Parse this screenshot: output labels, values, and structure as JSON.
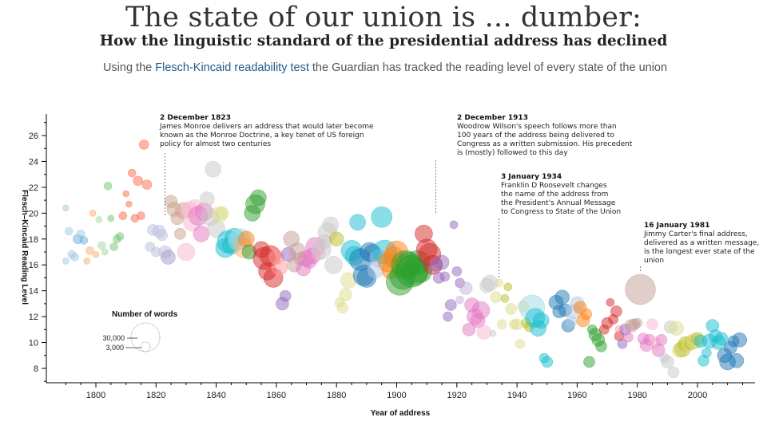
{
  "header": {
    "title": "The state of our union is ... dumber:",
    "subtitle": "How the linguistic standard of the presidential address has declined",
    "intro_before": "Using the ",
    "intro_link": "Flesch-Kincaid readability test",
    "intro_after": " the Guardian has tracked the reading level of every state of the union"
  },
  "chart_data": {
    "type": "scatter",
    "title": "",
    "xlabel": "Year of address",
    "ylabel": "Flesch–Kincaid Reading Level",
    "xlim": [
      1786,
      2018
    ],
    "ylim": [
      7,
      27.5
    ],
    "xticks": [
      1800,
      1820,
      1840,
      1860,
      1880,
      1900,
      1920,
      1940,
      1960,
      1980,
      2000
    ],
    "yticks": [
      8,
      10,
      12,
      14,
      16,
      18,
      20,
      22,
      24,
      26
    ],
    "grid": false,
    "bubble_size_meaning": "Number of words",
    "legend": {
      "title": "Number of words",
      "entries": [
        "30,000",
        "3,000"
      ],
      "entry_values": [
        30000,
        3000
      ]
    },
    "annotations": [
      {
        "year": 1823,
        "date": "2 December 1823",
        "lines": [
          "James Monroe delivers an address that would later become",
          "known as the Monroe Doctrine, a key tenet of US foreign",
          "policy for almost two centuries"
        ]
      },
      {
        "year": 1913,
        "date": "2 December 1913",
        "lines": [
          "Woodrow Wilson's speech follows more than",
          "100 years of the address being delivered to",
          "Congress as a written submission. His precedent",
          "is (mostly) followed to this day"
        ]
      },
      {
        "year": 1934,
        "date": "3 January 1934",
        "lines": [
          "Franklin D Roosevelt changes",
          "the name of the address from",
          "the President's Annual Message",
          "to Congress to State of the Union"
        ]
      },
      {
        "year": 1981,
        "date": "16 January 1981",
        "lines": [
          "Jimmy Carter's final address,",
          "delivered as a written message,",
          "is the longest ever state of the",
          "union"
        ]
      }
    ],
    "points": [
      [
        1790,
        20.4,
        "#9ecae1",
        4
      ],
      [
        1790,
        16.3,
        "#9ecae1",
        4
      ],
      [
        1791,
        18.6,
        "#9ecae1",
        5
      ],
      [
        1792,
        16.8,
        "#9ecae1",
        5
      ],
      [
        1793,
        16.6,
        "#9ecae1",
        5
      ],
      [
        1794,
        18.0,
        "#6baed6",
        6
      ],
      [
        1795,
        18.4,
        "#9ecae1",
        5
      ],
      [
        1796,
        17.9,
        "#6baed6",
        5
      ],
      [
        1797,
        16.3,
        "#fdae6b",
        4
      ],
      [
        1798,
        17.1,
        "#fdae6b",
        5
      ],
      [
        1799,
        20.0,
        "#fdae6b",
        4
      ],
      [
        1800,
        16.8,
        "#fdae6b",
        4
      ],
      [
        1801,
        19.5,
        "#a1d99b",
        4
      ],
      [
        1802,
        17.5,
        "#a1d99b",
        5
      ],
      [
        1803,
        17.0,
        "#a1d99b",
        4
      ],
      [
        1804,
        22.1,
        "#74c476",
        5
      ],
      [
        1805,
        19.6,
        "#74c476",
        4
      ],
      [
        1806,
        17.4,
        "#74c476",
        5
      ],
      [
        1807,
        18.0,
        "#74c476",
        5
      ],
      [
        1808,
        18.2,
        "#74c476",
        5
      ],
      [
        1809,
        19.8,
        "#fb6a4a",
        5
      ],
      [
        1810,
        21.5,
        "#fb6a4a",
        4
      ],
      [
        1811,
        20.7,
        "#fb6a4a",
        4
      ],
      [
        1812,
        23.1,
        "#fb6a4a",
        5
      ],
      [
        1813,
        19.6,
        "#fb6a4a",
        5
      ],
      [
        1814,
        22.5,
        "#fb6a4a",
        6
      ],
      [
        1815,
        19.8,
        "#fb6a4a",
        5
      ],
      [
        1816,
        25.3,
        "#fb6a4a",
        6
      ],
      [
        1817,
        22.2,
        "#fb6a4a",
        6
      ],
      [
        1818,
        17.4,
        "#bcbddc",
        6
      ],
      [
        1819,
        18.7,
        "#bcbddc",
        7
      ],
      [
        1820,
        17.0,
        "#bcbddc",
        6
      ],
      [
        1821,
        18.6,
        "#bcbddc",
        8
      ],
      [
        1822,
        18.3,
        "#bcbddc",
        7
      ],
      [
        1823,
        17.0,
        "#bcbddc",
        8
      ],
      [
        1824,
        16.6,
        "#9e9ac8",
        9
      ],
      [
        1825,
        20.9,
        "#c7a08a",
        8
      ],
      [
        1826,
        20.3,
        "#c7a08a",
        9
      ],
      [
        1827,
        19.6,
        "#c7a08a",
        8
      ],
      [
        1828,
        18.4,
        "#c7a08a",
        7
      ],
      [
        1829,
        20.2,
        "#d6a08a",
        10
      ],
      [
        1830,
        17.0,
        "#f7b6d2",
        11
      ],
      [
        1831,
        20.3,
        "#f7b6d2",
        10
      ],
      [
        1832,
        19.3,
        "#f7b6d2",
        11
      ],
      [
        1833,
        20.5,
        "#f7b6d2",
        9
      ],
      [
        1834,
        19.8,
        "#e377c2",
        12
      ],
      [
        1835,
        18.4,
        "#e377c2",
        10
      ],
      [
        1836,
        20.1,
        "#e377c2",
        11
      ],
      [
        1837,
        21.1,
        "#c7c7c7",
        9
      ],
      [
        1838,
        19.7,
        "#c7c7c7",
        11
      ],
      [
        1839,
        23.4,
        "#c7c7c7",
        10
      ],
      [
        1840,
        18.8,
        "#c7c7c7",
        11
      ],
      [
        1841,
        19.9,
        "#dbdb8d",
        10
      ],
      [
        1842,
        20.0,
        "#dbdb8d",
        8
      ],
      [
        1843,
        17.3,
        "#17becf",
        12
      ],
      [
        1844,
        17.8,
        "#17becf",
        14
      ],
      [
        1845,
        17.5,
        "#17becf",
        11
      ],
      [
        1846,
        18.1,
        "#17becf",
        12
      ],
      [
        1847,
        17.9,
        "#9edae5",
        12
      ],
      [
        1848,
        18.0,
        "#9edae5",
        13
      ],
      [
        1849,
        17.3,
        "#fdae6b",
        12
      ],
      [
        1850,
        18.0,
        "#ff7f0e",
        10
      ],
      [
        1851,
        17.0,
        "#2ca02c",
        9
      ],
      [
        1852,
        20.0,
        "#2ca02c",
        10
      ],
      [
        1853,
        20.7,
        "#2ca02c",
        12
      ],
      [
        1854,
        21.2,
        "#2ca02c",
        10
      ],
      [
        1855,
        17.2,
        "#d62728",
        10
      ],
      [
        1856,
        16.5,
        "#d62728",
        14
      ],
      [
        1857,
        15.5,
        "#d62728",
        11
      ],
      [
        1858,
        16.7,
        "#d62728",
        13
      ],
      [
        1859,
        15.0,
        "#d62728",
        12
      ],
      [
        1860,
        16.6,
        "#ff9896",
        9
      ],
      [
        1861,
        15.8,
        "#ff9896",
        10
      ],
      [
        1862,
        13.0,
        "#9467bd",
        8
      ],
      [
        1863,
        13.6,
        "#9467bd",
        7
      ],
      [
        1864,
        16.8,
        "#9467bd",
        9
      ],
      [
        1865,
        18.0,
        "#c49c94",
        10
      ],
      [
        1866,
        16.0,
        "#c49c94",
        9
      ],
      [
        1867,
        17.1,
        "#c49c94",
        10
      ],
      [
        1868,
        16.5,
        "#c49c94",
        8
      ],
      [
        1869,
        15.7,
        "#e377c2",
        9
      ],
      [
        1870,
        16.5,
        "#e377c2",
        10
      ],
      [
        1871,
        16.3,
        "#e377c2",
        9
      ],
      [
        1872,
        16.7,
        "#e377c2",
        10
      ],
      [
        1873,
        17.4,
        "#e377c2",
        12
      ],
      [
        1874,
        16.9,
        "#f7b6d2",
        9
      ],
      [
        1875,
        17.2,
        "#c7c7c7",
        12
      ],
      [
        1876,
        17.8,
        "#c7c7c7",
        9
      ],
      [
        1877,
        18.5,
        "#c7c7c7",
        12
      ],
      [
        1878,
        19.1,
        "#c7c7c7",
        10
      ],
      [
        1879,
        16.0,
        "#c7c7c7",
        11
      ],
      [
        1880,
        18.0,
        "#bcbd22",
        9
      ],
      [
        1881,
        13.1,
        "#dbdb8d",
        6
      ],
      [
        1882,
        12.7,
        "#dbdb8d",
        7
      ],
      [
        1883,
        13.7,
        "#dbdb8d",
        8
      ],
      [
        1884,
        14.8,
        "#dbdb8d",
        10
      ],
      [
        1885,
        17.1,
        "#17becf",
        13
      ],
      [
        1886,
        16.7,
        "#17becf",
        12
      ],
      [
        1887,
        19.3,
        "#17becf",
        10
      ],
      [
        1888,
        16.4,
        "#1f77b4",
        14
      ],
      [
        1889,
        15.2,
        "#1f77b4",
        13
      ],
      [
        1890,
        15.0,
        "#1f77b4",
        12
      ],
      [
        1891,
        17.0,
        "#1f77b4",
        12
      ],
      [
        1892,
        16.9,
        "#1f77b4",
        11
      ],
      [
        1893,
        15.6,
        "#aec7e8",
        10
      ],
      [
        1894,
        16.5,
        "#aec7e8",
        11
      ],
      [
        1895,
        19.7,
        "#17becf",
        13
      ],
      [
        1896,
        17.0,
        "#17becf",
        15
      ],
      [
        1897,
        16.2,
        "#ff7f0e",
        12
      ],
      [
        1898,
        15.6,
        "#ff7f0e",
        11
      ],
      [
        1899,
        16.6,
        "#ff7f0e",
        13
      ],
      [
        1900,
        17.0,
        "#ff7f0e",
        14
      ],
      [
        1901,
        14.7,
        "#2ca02c",
        17
      ],
      [
        1902,
        15.1,
        "#2ca02c",
        16
      ],
      [
        1903,
        16.0,
        "#2ca02c",
        18
      ],
      [
        1904,
        16.0,
        "#2ca02c",
        16
      ],
      [
        1905,
        15.5,
        "#2ca02c",
        20
      ],
      [
        1906,
        15.5,
        "#2ca02c",
        17
      ],
      [
        1907,
        16.2,
        "#2ca02c",
        15
      ],
      [
        1908,
        15.5,
        "#2ca02c",
        14
      ],
      [
        1909,
        18.4,
        "#d62728",
        11
      ],
      [
        1910,
        17.2,
        "#d62728",
        13
      ],
      [
        1911,
        16.8,
        "#d62728",
        14
      ],
      [
        1912,
        16.0,
        "#d62728",
        12
      ],
      [
        1913,
        16.0,
        "#9467bd",
        8
      ],
      [
        1914,
        15.0,
        "#9467bd",
        7
      ],
      [
        1915,
        16.2,
        "#9467bd",
        9
      ],
      [
        1916,
        15.1,
        "#9467bd",
        6
      ],
      [
        1917,
        12.0,
        "#9467bd",
        6
      ],
      [
        1918,
        12.9,
        "#9467bd",
        7
      ],
      [
        1919,
        19.1,
        "#9467bd",
        5
      ],
      [
        1920,
        15.5,
        "#9467bd",
        6
      ],
      [
        1921,
        14.6,
        "#9467bd",
        6
      ],
      [
        1921,
        13.3,
        "#c5b0d5",
        5
      ],
      [
        1923,
        14.2,
        "#c5b0d5",
        8
      ],
      [
        1924,
        11.0,
        "#e377c2",
        8
      ],
      [
        1925,
        12.9,
        "#e377c2",
        9
      ],
      [
        1926,
        12.0,
        "#e377c2",
        10
      ],
      [
        1927,
        11.7,
        "#e377c2",
        9
      ],
      [
        1928,
        12.5,
        "#e377c2",
        11
      ],
      [
        1929,
        10.8,
        "#f7b6d2",
        9
      ],
      [
        1930,
        14.4,
        "#c7c7c7",
        9
      ],
      [
        1931,
        14.6,
        "#c7c7c7",
        10
      ],
      [
        1932,
        10.7,
        "#c7c7c7",
        4
      ],
      [
        1933,
        13.5,
        "#dbdb8d",
        7
      ],
      [
        1934,
        14.6,
        "#dbdb8d",
        5
      ],
      [
        1935,
        11.4,
        "#dbdb8d",
        6
      ],
      [
        1936,
        13.4,
        "#bcbd22",
        5
      ],
      [
        1937,
        14.3,
        "#bcbd22",
        5
      ],
      [
        1938,
        12.6,
        "#dbdb8d",
        7
      ],
      [
        1939,
        11.4,
        "#dbdb8d",
        6
      ],
      [
        1940,
        11.4,
        "#dbdb8d",
        7
      ],
      [
        1941,
        9.9,
        "#dbdb8d",
        6
      ],
      [
        1942,
        12.8,
        "#dbdb8d",
        7
      ],
      [
        1943,
        11.5,
        "#bcbd22",
        6
      ],
      [
        1944,
        11.2,
        "#bcbd22",
        6
      ],
      [
        1945,
        12.7,
        "#9edae5",
        16
      ],
      [
        1946,
        11.9,
        "#17becf",
        12
      ],
      [
        1947,
        11.1,
        "#17becf",
        10
      ],
      [
        1948,
        11.7,
        "#17becf",
        10
      ],
      [
        1949,
        8.8,
        "#17becf",
        6
      ],
      [
        1950,
        8.5,
        "#17becf",
        7
      ],
      [
        1953,
        13.1,
        "#1f77b4",
        9
      ],
      [
        1954,
        12.4,
        "#1f77b4",
        8
      ],
      [
        1955,
        13.5,
        "#1f77b4",
        9
      ],
      [
        1956,
        12.5,
        "#1f77b4",
        8
      ],
      [
        1957,
        11.3,
        "#1f77b4",
        8
      ],
      [
        1958,
        11.6,
        "#aec7e8",
        7
      ],
      [
        1959,
        12.4,
        "#aec7e8",
        9
      ],
      [
        1960,
        13.0,
        "#aec7e8",
        9
      ],
      [
        1961,
        12.7,
        "#ff7f0e",
        8
      ],
      [
        1962,
        11.7,
        "#ff7f0e",
        8
      ],
      [
        1963,
        12.2,
        "#ff7f0e",
        7
      ],
      [
        1964,
        8.5,
        "#2ca02c",
        7
      ],
      [
        1965,
        11.0,
        "#2ca02c",
        6
      ],
      [
        1966,
        10.6,
        "#2ca02c",
        8
      ],
      [
        1967,
        10.2,
        "#2ca02c",
        8
      ],
      [
        1968,
        9.7,
        "#2ca02c",
        7
      ],
      [
        1969,
        11.0,
        "#d62728",
        6
      ],
      [
        1970,
        11.5,
        "#d62728",
        7
      ],
      [
        1971,
        13.1,
        "#d62728",
        5
      ],
      [
        1972,
        11.8,
        "#d62728",
        6
      ],
      [
        1973,
        12.4,
        "#d62728",
        7
      ],
      [
        1974,
        10.5,
        "#d62728",
        6
      ],
      [
        1974,
        11.0,
        "#ff9896",
        5
      ],
      [
        1975,
        9.9,
        "#9467bd",
        6
      ],
      [
        1976,
        11.0,
        "#9467bd",
        7
      ],
      [
        1977,
        10.4,
        "#e377c2",
        6
      ],
      [
        1978,
        11.3,
        "#c49c94",
        8
      ],
      [
        1979,
        11.4,
        "#c49c94",
        7
      ],
      [
        1980,
        11.5,
        "#c49c94",
        6
      ],
      [
        1981,
        14.1,
        "#c49c94",
        19
      ],
      [
        1982,
        10.3,
        "#e377c2",
        7
      ],
      [
        1983,
        9.8,
        "#e377c2",
        8
      ],
      [
        1984,
        10.2,
        "#e377c2",
        7
      ],
      [
        1985,
        11.4,
        "#f7b6d2",
        7
      ],
      [
        1986,
        10.0,
        "#f7b6d2",
        7
      ],
      [
        1987,
        9.4,
        "#e377c2",
        8
      ],
      [
        1988,
        10.2,
        "#e377c2",
        7
      ],
      [
        1989,
        8.8,
        "#c7c7c7",
        6
      ],
      [
        1990,
        8.5,
        "#c7c7c7",
        8
      ],
      [
        1991,
        11.2,
        "#c7c7c7",
        8
      ],
      [
        1992,
        7.7,
        "#c7c7c7",
        7
      ],
      [
        1993,
        11.1,
        "#dbdb8d",
        9
      ],
      [
        1994,
        9.4,
        "#dbdb8d",
        9
      ],
      [
        1995,
        9.5,
        "#bcbd22",
        10
      ],
      [
        1996,
        9.9,
        "#bcbd22",
        9
      ],
      [
        1997,
        9.8,
        "#dbdb8d",
        8
      ],
      [
        1998,
        10.0,
        "#bcbd22",
        9
      ],
      [
        1999,
        10.1,
        "#dbdb8d",
        10
      ],
      [
        2000,
        10.3,
        "#bcbd22",
        8
      ],
      [
        2001,
        10.1,
        "#17becf",
        8
      ],
      [
        2002,
        8.6,
        "#17becf",
        7
      ],
      [
        2003,
        9.2,
        "#17becf",
        6
      ],
      [
        2004,
        10.1,
        "#17becf",
        9
      ],
      [
        2005,
        11.3,
        "#17becf",
        8
      ],
      [
        2006,
        10.5,
        "#17becf",
        8
      ],
      [
        2007,
        10.0,
        "#17becf",
        9
      ],
      [
        2008,
        10.3,
        "#17becf",
        8
      ],
      [
        2009,
        9.0,
        "#1f77b4",
        9
      ],
      [
        2010,
        8.5,
        "#1f77b4",
        10
      ],
      [
        2011,
        9.6,
        "#1f77b4",
        8
      ],
      [
        2012,
        10.1,
        "#1f77b4",
        7
      ],
      [
        2013,
        8.6,
        "#1f77b4",
        9
      ],
      [
        2014,
        10.2,
        "#1f77b4",
        9
      ]
    ]
  }
}
